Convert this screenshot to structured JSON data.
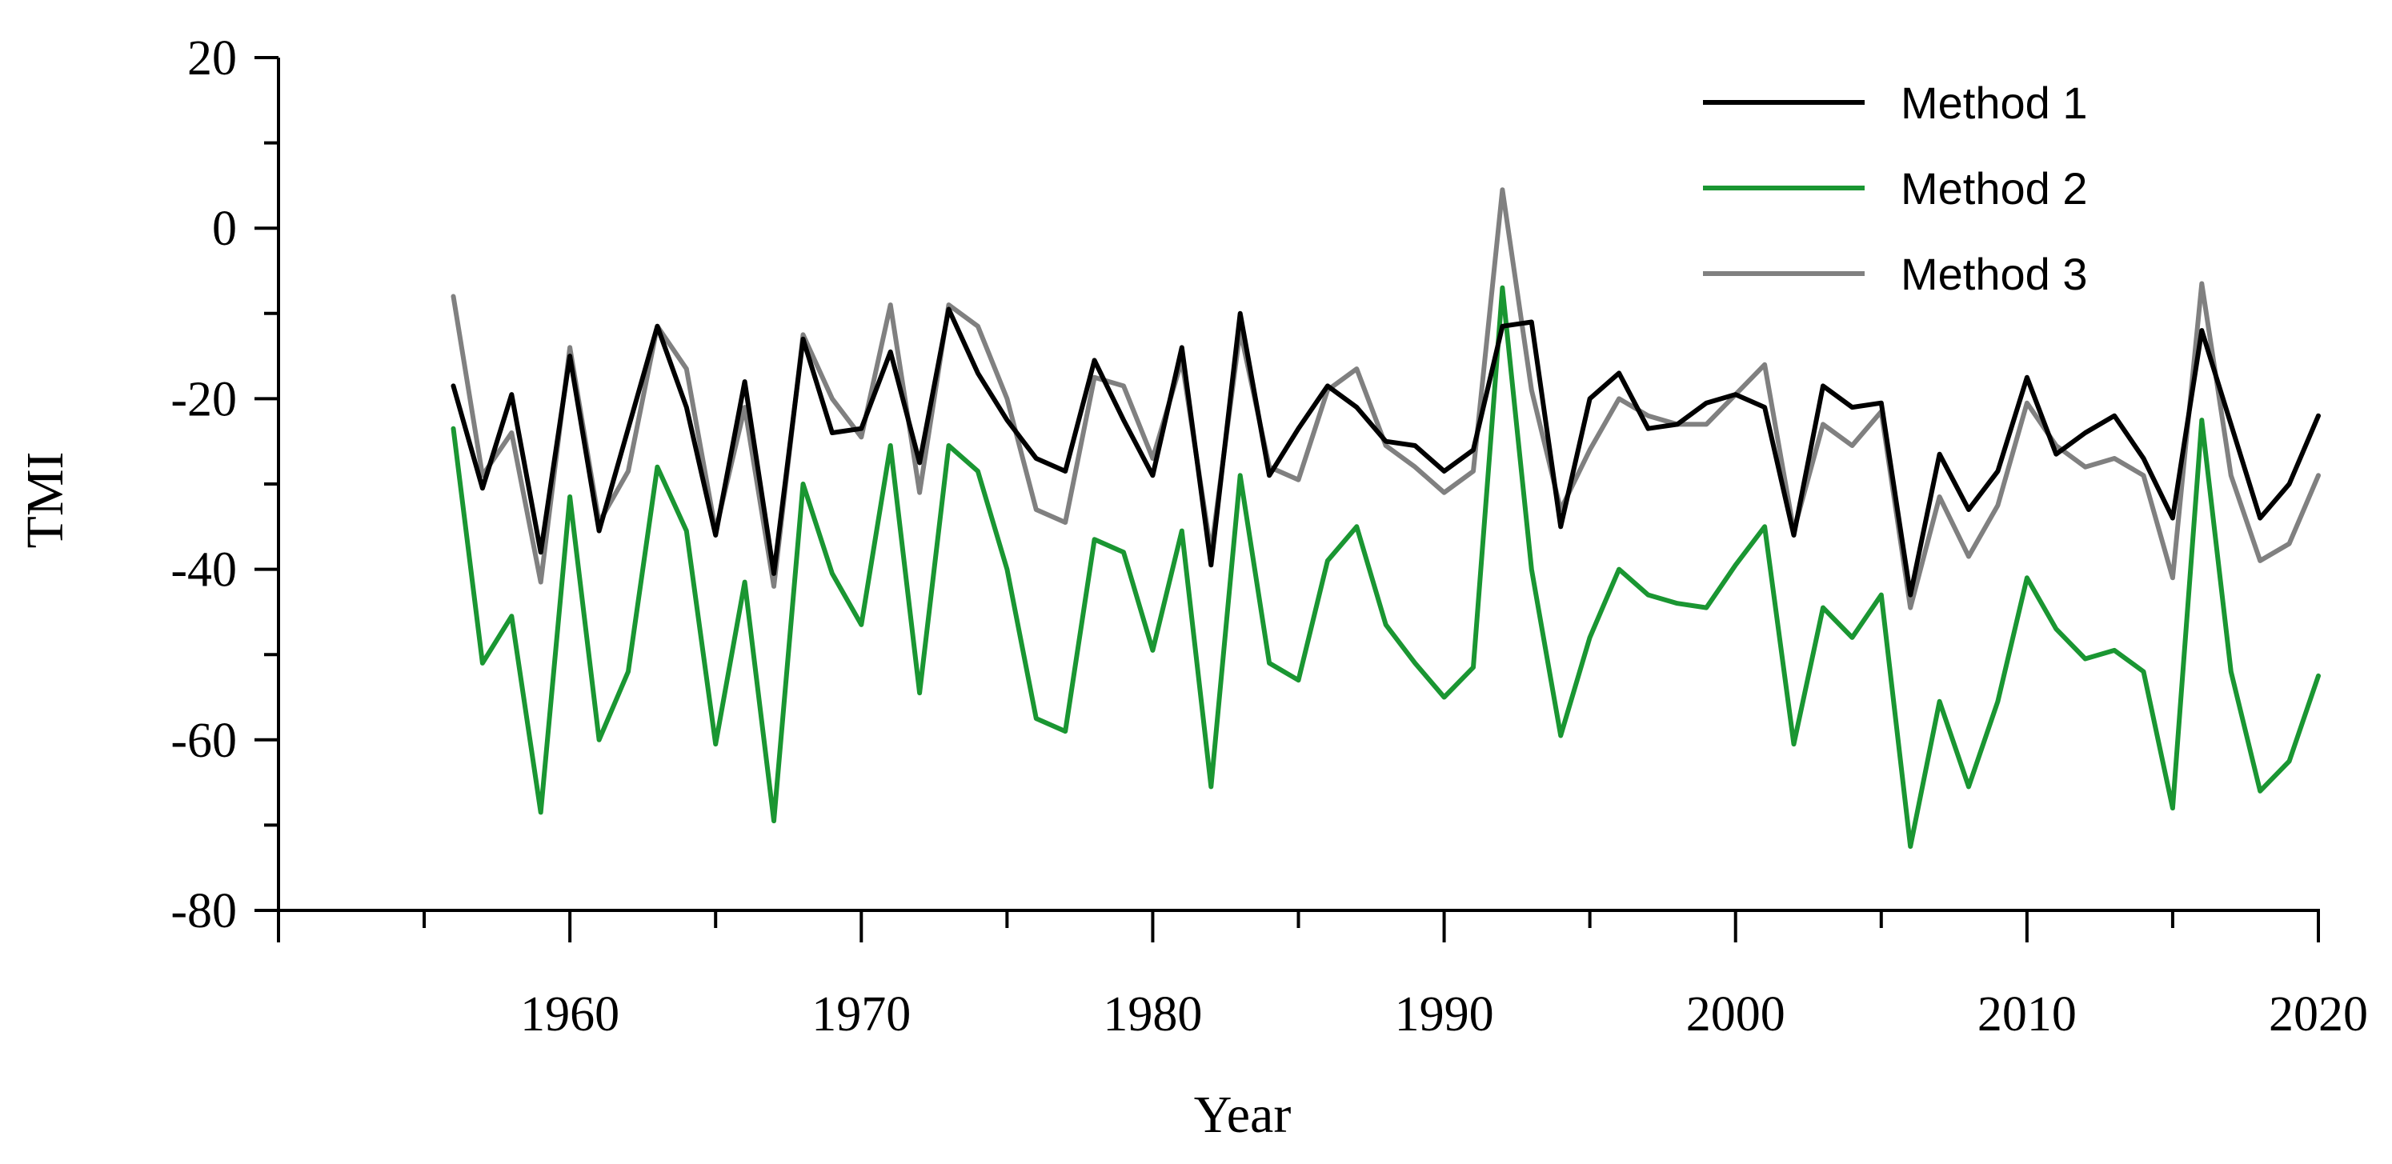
{
  "chart_data": {
    "type": "line",
    "title": "",
    "xlabel": "Year",
    "ylabel": "TMI",
    "xlim": [
      1950,
      2020
    ],
    "ylim": [
      -80,
      20
    ],
    "x_ticks": [
      1960,
      1970,
      1980,
      1990,
      2000,
      2010,
      2020
    ],
    "x_tick_labels": [
      "1960",
      "1970",
      "1980",
      "1990",
      "2000",
      "2010",
      "2020"
    ],
    "y_ticks": [
      -80,
      -60,
      -40,
      -20,
      0,
      20
    ],
    "y_tick_labels": [
      "-80",
      "-60",
      "-40",
      "-20",
      "0",
      "20"
    ],
    "legend_position": "top-right",
    "x": [
      1956,
      1957,
      1958,
      1959,
      1960,
      1961,
      1962,
      1963,
      1964,
      1965,
      1966,
      1967,
      1968,
      1969,
      1970,
      1971,
      1972,
      1973,
      1974,
      1975,
      1976,
      1977,
      1978,
      1979,
      1980,
      1981,
      1982,
      1983,
      1984,
      1985,
      1986,
      1987,
      1988,
      1989,
      1990,
      1991,
      1992,
      1993,
      1994,
      1995,
      1996,
      1997,
      1998,
      1999,
      2000,
      2001,
      2002,
      2003,
      2004,
      2005,
      2006,
      2007,
      2008,
      2009,
      2010,
      2011,
      2012,
      2013,
      2014,
      2015,
      2016,
      2017,
      2018,
      2019,
      2020
    ],
    "series": [
      {
        "name": "Method 1",
        "color": "#000000",
        "values": [
          -18.5,
          -30.5,
          -19.5,
          -38,
          -15,
          -35.5,
          -23.5,
          -11.5,
          -21,
          -36,
          -18,
          -40.5,
          -13,
          -24,
          -23.5,
          -14.5,
          -27.5,
          -9.5,
          -17,
          -22.5,
          -27,
          -28.5,
          -15.5,
          -22.5,
          -29,
          -14,
          -39.5,
          -10,
          -29,
          -23.5,
          -18.5,
          -21,
          -25,
          -25.5,
          -28.5,
          -26,
          -11.5,
          -11,
          -35,
          -20,
          -17,
          -23.5,
          -23,
          -20.5,
          -19.5,
          -21,
          -36,
          -18.5,
          -21,
          -20.5,
          -43,
          -26.5,
          -33,
          -28.5,
          -17.5,
          -26.5,
          -24,
          -22,
          -27,
          -34,
          -12,
          -23,
          -34,
          -30,
          -22
        ]
      },
      {
        "name": "Method 2",
        "color": "#1a9632",
        "values": [
          -23.5,
          -51,
          -45.5,
          -68.5,
          -31.5,
          -60,
          -52,
          -28,
          -35.5,
          -60.5,
          -41.5,
          -69.5,
          -30,
          -40.5,
          -46.5,
          -25.5,
          -54.5,
          -25.5,
          -28.5,
          -40,
          -57.5,
          -59,
          -36.5,
          -38,
          -49.5,
          -35.5,
          -65.5,
          -29,
          -51,
          -53,
          -39,
          -35,
          -46.5,
          -51,
          -55,
          -51.5,
          -7,
          -40,
          -59.5,
          -48,
          -40,
          -43,
          -44,
          -44.5,
          -39.5,
          -35,
          -60.5,
          -44.5,
          -48,
          -43,
          -72.5,
          -55.5,
          -65.5,
          -55.5,
          -41,
          -47,
          -50.5,
          -49.5,
          -52,
          -68,
          -22.5,
          -52,
          -66,
          -62.5,
          -52.5
        ]
      },
      {
        "name": "Method 3",
        "color": "#808080",
        "values": [
          -8,
          -29,
          -24,
          -41.5,
          -14,
          -34.5,
          -28.5,
          -11.5,
          -16.5,
          -35.5,
          -21,
          -42,
          -12.5,
          -20,
          -24.5,
          -9,
          -31,
          -9,
          -11.5,
          -20,
          -33,
          -34.5,
          -17.5,
          -18.5,
          -27,
          -15.5,
          -38,
          -12,
          -28,
          -29.5,
          -19,
          -16.5,
          -25.5,
          -28,
          -31,
          -28.5,
          4.5,
          -19,
          -33,
          -26,
          -20,
          -22,
          -23,
          -23,
          -19.5,
          -16,
          -35.5,
          -23,
          -25.5,
          -21.5,
          -44.5,
          -31.5,
          -38.5,
          -32.5,
          -20.5,
          -25.5,
          -28,
          -27,
          -29,
          -41,
          -6.5,
          -29,
          -39,
          -37,
          -29
        ]
      }
    ]
  }
}
